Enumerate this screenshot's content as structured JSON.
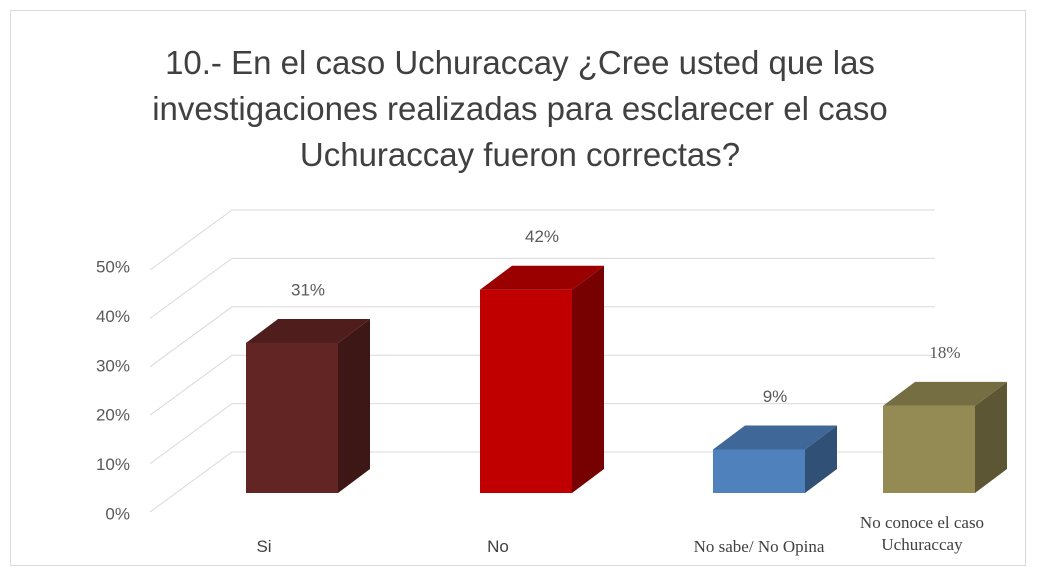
{
  "chart_data": {
    "type": "bar3d",
    "title": "10.- En el caso Uchuraccay ¿Cree usted que las investigaciones realizadas para esclarecer el caso Uchuraccay fueron correctas?",
    "categories": [
      "Si",
      "No",
      "No sabe/ No Opina",
      "No conoce el caso Uchuraccay"
    ],
    "values": [
      31,
      42,
      9,
      18
    ],
    "value_labels": [
      "31%",
      "42%",
      "9%",
      "18%"
    ],
    "colors": [
      "#632523",
      "#c00000",
      "#4f81bd",
      "#948a54"
    ],
    "ylim": [
      0,
      50
    ],
    "yticks": [
      {
        "value": 0,
        "label": "0%"
      },
      {
        "value": 10,
        "label": "10%"
      },
      {
        "value": 20,
        "label": "20%"
      },
      {
        "value": 30,
        "label": "30%"
      },
      {
        "value": 40,
        "label": "40%"
      },
      {
        "value": 50,
        "label": "50%"
      }
    ],
    "grid": true
  }
}
